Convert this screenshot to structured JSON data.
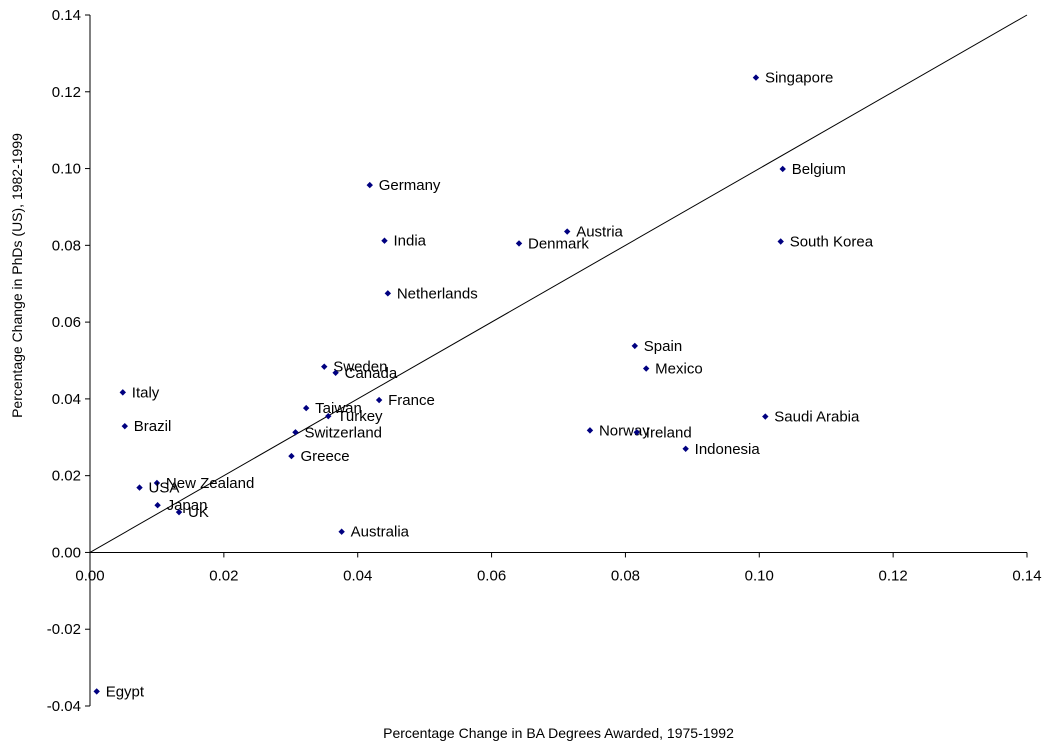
{
  "chart_data": {
    "type": "scatter",
    "title": "",
    "xlabel": "Percentage Change in BA Degrees Awarded, 1975-1992",
    "ylabel": "Percentage Change in PhDs (US), 1982-1999",
    "xlim": [
      0,
      0.14
    ],
    "ylim": [
      -0.04,
      0.14
    ],
    "x_ticks": [
      "0.00",
      "0.02",
      "0.04",
      "0.06",
      "0.08",
      "0.10",
      "0.12",
      "0.14"
    ],
    "y_ticks": [
      "-0.04",
      "-0.02",
      "0.00",
      "0.02",
      "0.04",
      "0.06",
      "0.08",
      "0.10",
      "0.12",
      "0.14"
    ],
    "marker_color": "#000080",
    "grid": false,
    "legend": "none",
    "reference_line": {
      "label": "",
      "x": [
        0,
        0.14
      ],
      "y": [
        0,
        0.14
      ]
    },
    "points": [
      {
        "label": "Singapore",
        "x": 0.0995,
        "y": 0.1237
      },
      {
        "label": "Belgium",
        "x": 0.1035,
        "y": 0.0999
      },
      {
        "label": "South Korea",
        "x": 0.1032,
        "y": 0.081
      },
      {
        "label": "Germany",
        "x": 0.0418,
        "y": 0.0957
      },
      {
        "label": "India",
        "x": 0.044,
        "y": 0.0812
      },
      {
        "label": "Austria",
        "x": 0.0713,
        "y": 0.0836
      },
      {
        "label": "Denmark",
        "x": 0.0641,
        "y": 0.0805
      },
      {
        "label": "Netherlands",
        "x": 0.0445,
        "y": 0.0675
      },
      {
        "label": "Spain",
        "x": 0.0814,
        "y": 0.0538
      },
      {
        "label": "Mexico",
        "x": 0.0831,
        "y": 0.0479
      },
      {
        "label": "Sweden",
        "x": 0.035,
        "y": 0.0484
      },
      {
        "label": "Canada",
        "x": 0.0367,
        "y": 0.0468
      },
      {
        "label": "Italy",
        "x": 0.0049,
        "y": 0.0417
      },
      {
        "label": "France",
        "x": 0.0432,
        "y": 0.0397
      },
      {
        "label": "Taiwan",
        "x": 0.0323,
        "y": 0.0376
      },
      {
        "label": "Turkey",
        "x": 0.0356,
        "y": 0.0355
      },
      {
        "label": "Saudi Arabia",
        "x": 0.1009,
        "y": 0.0354
      },
      {
        "label": "Brazil",
        "x": 0.0052,
        "y": 0.0329
      },
      {
        "label": "Switzerland",
        "x": 0.0307,
        "y": 0.0313
      },
      {
        "label": "Norway",
        "x": 0.0747,
        "y": 0.0318
      },
      {
        "label": "Ireland",
        "x": 0.0817,
        "y": 0.0313
      },
      {
        "label": "Indonesia",
        "x": 0.089,
        "y": 0.027
      },
      {
        "label": "Greece",
        "x": 0.0301,
        "y": 0.0251
      },
      {
        "label": "New Zealand",
        "x": 0.01,
        "y": 0.0181
      },
      {
        "label": "USA",
        "x": 0.0074,
        "y": 0.0169
      },
      {
        "label": "Japan",
        "x": 0.0101,
        "y": 0.0123
      },
      {
        "label": "UK",
        "x": 0.0133,
        "y": 0.0105
      },
      {
        "label": "Australia",
        "x": 0.0376,
        "y": 0.0054
      },
      {
        "label": "Egypt",
        "x": 0.001,
        "y": -0.0362
      }
    ]
  }
}
